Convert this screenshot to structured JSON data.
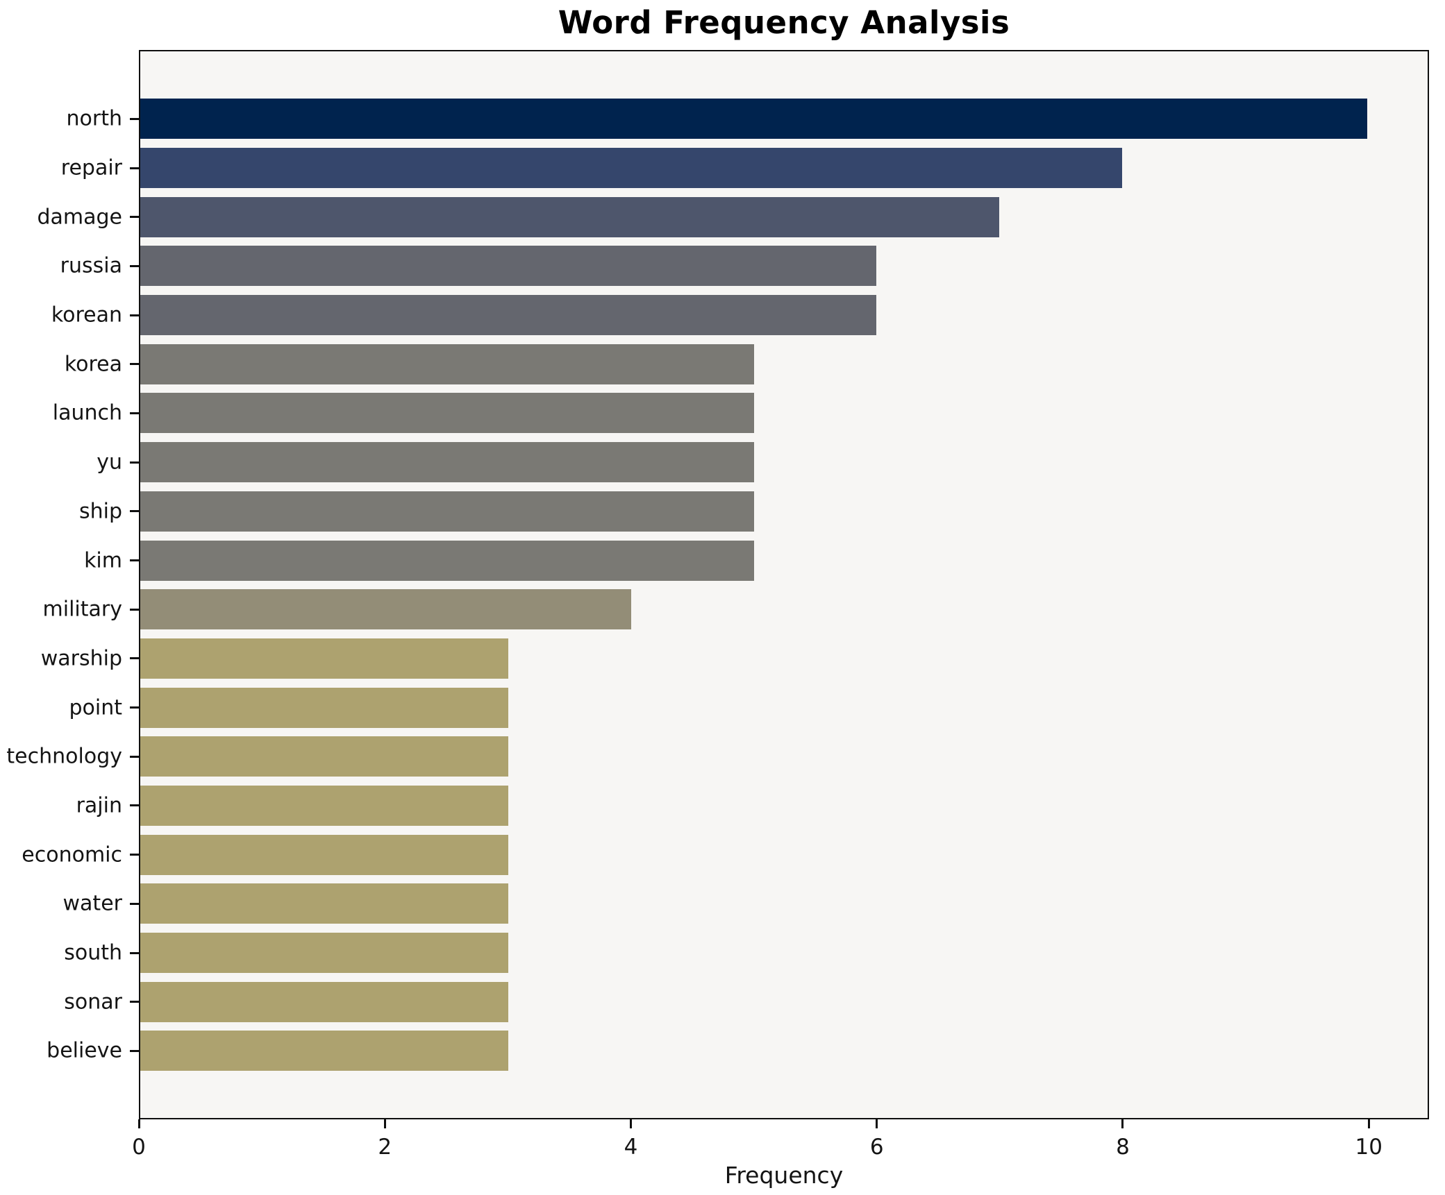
{
  "chart_data": {
    "type": "bar",
    "orientation": "horizontal",
    "title": "Word Frequency Analysis",
    "xlabel": "Frequency",
    "ylabel": "",
    "categories": [
      "north",
      "repair",
      "damage",
      "russia",
      "korean",
      "korea",
      "launch",
      "yu",
      "ship",
      "kim",
      "military",
      "warship",
      "point",
      "technology",
      "rajin",
      "economic",
      "water",
      "south",
      "sonar",
      "believe"
    ],
    "values": [
      10,
      8,
      7,
      6,
      6,
      5,
      5,
      5,
      5,
      5,
      4,
      3,
      3,
      3,
      3,
      3,
      3,
      3,
      3,
      3
    ],
    "bar_colors": [
      "#00234e",
      "#35466c",
      "#4e566c",
      "#64666e",
      "#64666e",
      "#7a7974",
      "#7a7974",
      "#7a7974",
      "#7a7974",
      "#7a7974",
      "#938d77",
      "#ada26f",
      "#ada26f",
      "#ada26f",
      "#ada26f",
      "#ada26f",
      "#ada26f",
      "#ada26f",
      "#ada26f",
      "#ada26f"
    ],
    "xticks": [
      0,
      2,
      4,
      6,
      8,
      10
    ],
    "xlim": [
      0,
      10.49
    ],
    "grid": false,
    "legend_position": "none",
    "plot_bg": "#f7f6f4",
    "figure_bg": "#ffffff",
    "spine_color": "#0f0f0f",
    "text_color": "#141414"
  }
}
